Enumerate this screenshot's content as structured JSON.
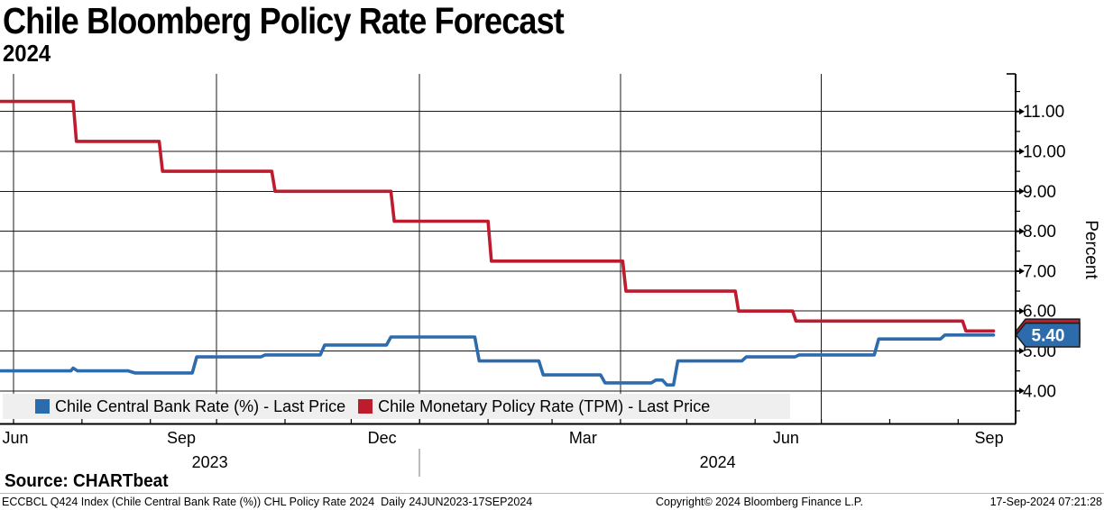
{
  "header": {
    "title": "Chile Bloomberg Policy Rate Forecast",
    "subtitle": "2024"
  },
  "y_axis_title": "Percent",
  "last_price_badge": {
    "label": "5.40"
  },
  "legend": {
    "items": [
      {
        "label": "Chile Central Bank Rate (%) - Last Price",
        "color": "#2c6cad"
      },
      {
        "label": "Chile Monetary Policy Rate (TPM) - Last Price",
        "color": "#be1b2e"
      }
    ]
  },
  "source_line": "Source: CHARTbeat",
  "footer": {
    "left": "ECCBCL Q424 Index (Chile Central Bank Rate (%)) CHL Policy Rate 2024  Daily 24JUN2023-17SEP2024",
    "center": "Copyright© 2024 Bloomberg Finance L.P.",
    "right": "17-Sep-2024 07:21:28"
  },
  "chart_data": {
    "type": "line",
    "title": "Chile Bloomberg Policy Rate Forecast 2024",
    "xlabel": "",
    "ylabel": "Percent",
    "x_range": [
      "24JUN2023",
      "17SEP2024"
    ],
    "ylim": [
      3.2,
      11.9
    ],
    "grid": true,
    "legend_position": "bottom",
    "y_ticks": [
      {
        "value": 11,
        "label": "11.00"
      },
      {
        "value": 10,
        "label": "10.00"
      },
      {
        "value": 9,
        "label": "9.00"
      },
      {
        "value": 8,
        "label": "8.00"
      },
      {
        "value": 7,
        "label": "7.00"
      },
      {
        "value": 6,
        "label": "6.00"
      },
      {
        "value": 5,
        "label": "5.00"
      },
      {
        "value": 4,
        "label": "4.00"
      }
    ],
    "y_minor_ticks": [
      11.5,
      10.5,
      9.5,
      8.5,
      7.5,
      6.5,
      5.5,
      4.5,
      3.5
    ],
    "x_axis": {
      "month_ticks": [
        {
          "label": "Jun",
          "day": -9
        },
        {
          "label": "Sep",
          "day": 83
        },
        {
          "label": "Dec",
          "day": 174
        },
        {
          "label": "Mar",
          "day": 265
        },
        {
          "label": "Jun",
          "day": 357
        },
        {
          "label": "Sep",
          "day": 449
        }
      ],
      "year_labels": [
        "2023",
        "2024"
      ],
      "year_divider_day": 191,
      "quarter_gridline_days": [
        7,
        99,
        191,
        282,
        373
      ],
      "month_tick_days": [
        7,
        38,
        69,
        99,
        130,
        160,
        191,
        222,
        251,
        282,
        312,
        343,
        373,
        404,
        435
      ]
    },
    "series": [
      {
        "name": "Chile Central Bank Rate (%) - Last Price",
        "color": "#2c6cad",
        "last_value": 5.4,
        "points": [
          [
            0,
            4.5
          ],
          [
            33,
            4.5
          ],
          [
            34,
            4.57
          ],
          [
            36,
            4.5
          ],
          [
            59,
            4.5
          ],
          [
            62,
            4.45
          ],
          [
            88,
            4.45
          ],
          [
            90,
            4.85
          ],
          [
            119,
            4.85
          ],
          [
            121,
            4.9
          ],
          [
            146,
            4.9
          ],
          [
            148,
            5.15
          ],
          [
            176,
            5.15
          ],
          [
            178,
            5.35
          ],
          [
            216,
            5.35
          ],
          [
            218,
            4.75
          ],
          [
            245,
            4.75
          ],
          [
            247,
            4.4
          ],
          [
            273,
            4.4
          ],
          [
            275,
            4.2
          ],
          [
            296,
            4.2
          ],
          [
            298,
            4.27
          ],
          [
            301,
            4.27
          ],
          [
            303,
            4.15
          ],
          [
            306,
            4.15
          ],
          [
            308,
            4.75
          ],
          [
            337,
            4.75
          ],
          [
            339,
            4.85
          ],
          [
            361,
            4.85
          ],
          [
            363,
            4.9
          ],
          [
            397,
            4.9
          ],
          [
            399,
            5.3
          ],
          [
            427,
            5.3
          ],
          [
            429,
            5.4
          ],
          [
            451,
            5.4
          ]
        ]
      },
      {
        "name": "Chile Monetary Policy Rate (TPM) - Last Price",
        "color": "#be1b2e",
        "last_value": 5.5,
        "points": [
          [
            0,
            11.25
          ],
          [
            34,
            11.25
          ],
          [
            35.5,
            10.25
          ],
          [
            73,
            10.25
          ],
          [
            74.5,
            9.5
          ],
          [
            124,
            9.5
          ],
          [
            125.5,
            9
          ],
          [
            178,
            9
          ],
          [
            179.5,
            8.25
          ],
          [
            222,
            8.25
          ],
          [
            223.5,
            7.25
          ],
          [
            283,
            7.25
          ],
          [
            284.5,
            6.5
          ],
          [
            334,
            6.5
          ],
          [
            335.5,
            6
          ],
          [
            360,
            6
          ],
          [
            361.5,
            5.75
          ],
          [
            437,
            5.75
          ],
          [
            438.5,
            5.5
          ],
          [
            451,
            5.5
          ]
        ]
      }
    ]
  }
}
